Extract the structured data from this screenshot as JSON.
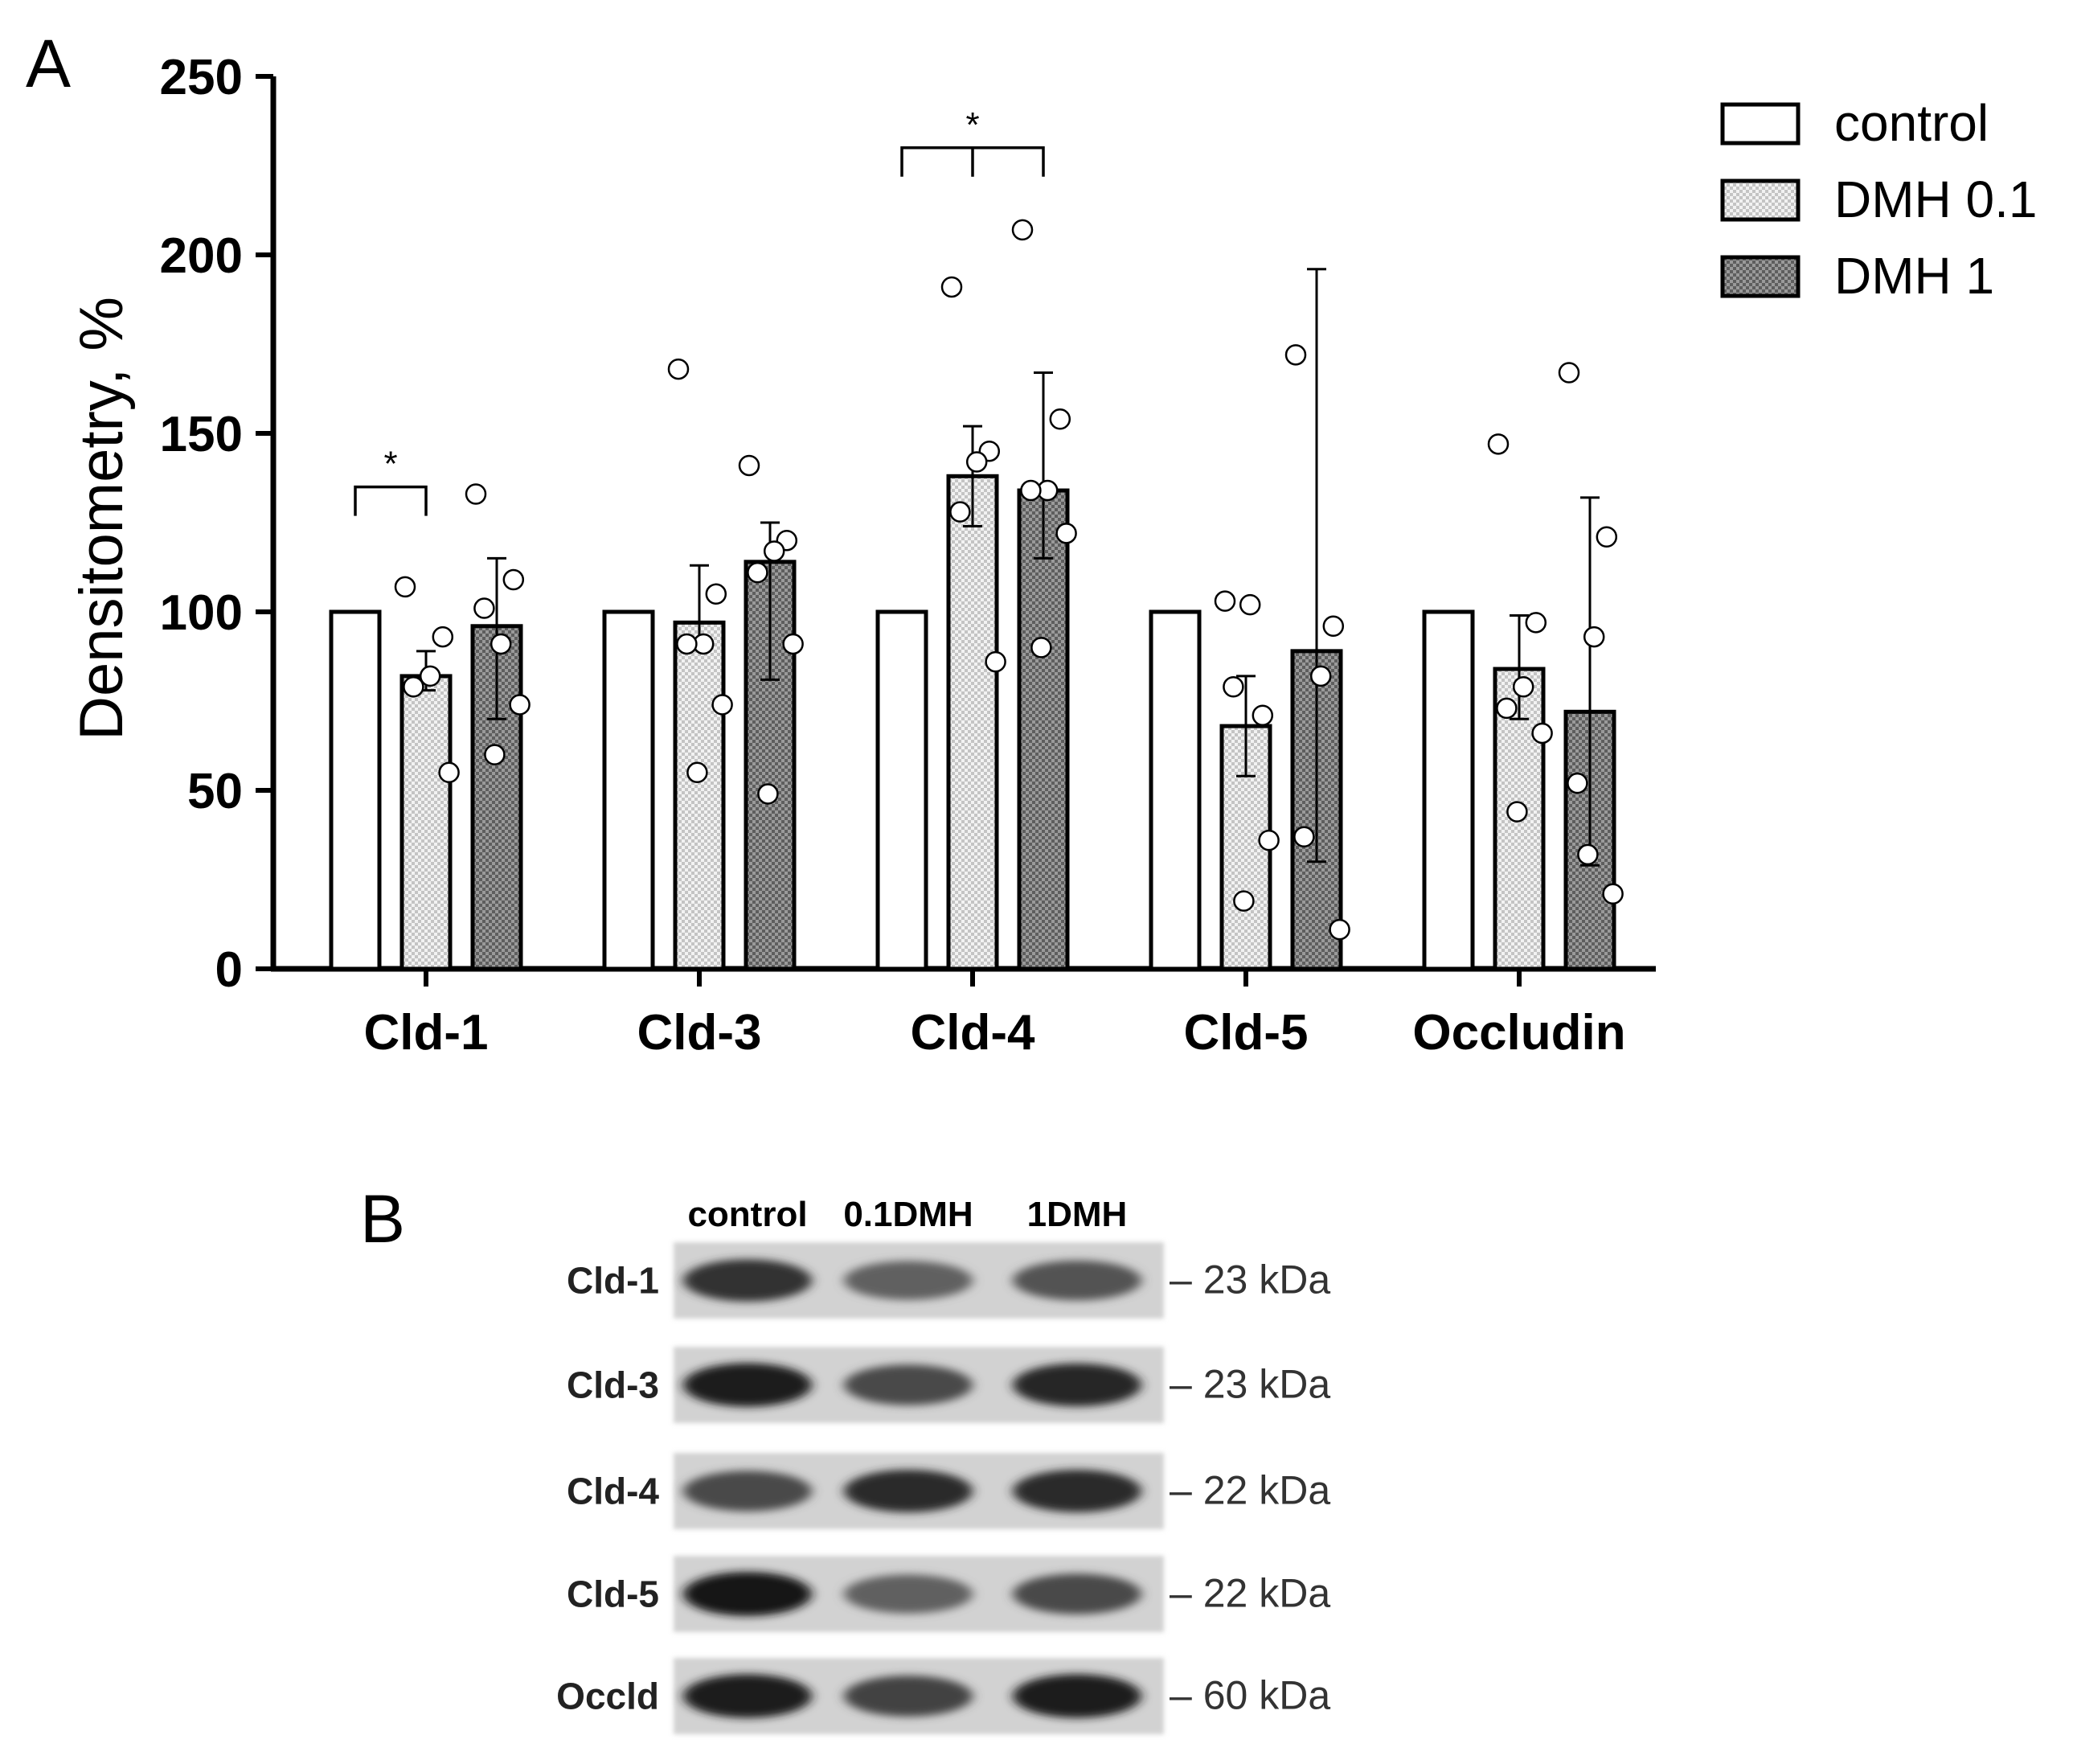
{
  "panel_a": {
    "label": "A"
  },
  "panel_b": {
    "label": "B",
    "lane_labels": [
      "control",
      "0.1DMH",
      "1DMH"
    ],
    "blots": [
      {
        "name": "Cld-1",
        "size": "– 23 kDa",
        "intensity": [
          0.82,
          0.62,
          0.68
        ]
      },
      {
        "name": "Cld-3",
        "size": "– 23 kDa",
        "intensity": [
          0.92,
          0.72,
          0.88
        ]
      },
      {
        "name": "Cld-4",
        "size": "– 22 kDa",
        "intensity": [
          0.72,
          0.85,
          0.85
        ]
      },
      {
        "name": "Cld-5",
        "size": "– 22 kDa",
        "intensity": [
          0.95,
          0.62,
          0.72
        ]
      },
      {
        "name": "Occld",
        "size": "– 60 kDa",
        "intensity": [
          0.92,
          0.75,
          0.92
        ]
      }
    ]
  },
  "colors": {
    "control": "#ffffff",
    "dmh01": "#d9d9d9",
    "dmh1": "#7a7a7a",
    "axis": "#000000"
  },
  "chart_data": {
    "type": "bar",
    "title": "",
    "xlabel": "",
    "ylabel": "Densitometry, %",
    "ylim": [
      0,
      250
    ],
    "yticks": [
      0,
      50,
      100,
      150,
      200,
      250
    ],
    "categories": [
      "Cld-1",
      "Cld-3",
      "Cld-4",
      "Cld-5",
      "Occludin"
    ],
    "legend_position": "top-right",
    "series": [
      {
        "name": "control",
        "values": [
          100,
          100,
          100,
          100,
          100
        ],
        "errors": [
          [
            0,
            0
          ],
          [
            0,
            0
          ],
          [
            0,
            0
          ],
          [
            0,
            0
          ],
          [
            0,
            0
          ]
        ],
        "points": [
          [],
          [],
          [],
          [],
          []
        ]
      },
      {
        "name": "DMH 0.1",
        "values": [
          82,
          97,
          138,
          68,
          84
        ],
        "errors": [
          [
            78,
            89
          ],
          [
            91,
            113
          ],
          [
            124,
            152
          ],
          [
            54,
            82
          ],
          [
            70,
            99
          ]
        ],
        "points": [
          [
            107,
            93,
            82,
            79,
            55
          ],
          [
            168,
            105,
            91,
            91,
            74,
            55
          ],
          [
            191,
            145,
            142,
            128,
            86
          ],
          [
            103,
            71,
            102,
            79,
            36,
            19
          ],
          [
            147,
            97,
            79,
            73,
            66,
            44
          ]
        ]
      },
      {
        "name": "DMH 1",
        "values": [
          96,
          114,
          134,
          89,
          72
        ],
        "errors": [
          [
            70,
            115
          ],
          [
            81,
            125
          ],
          [
            115,
            167
          ],
          [
            30,
            196
          ],
          [
            29,
            132
          ]
        ],
        "points": [
          [
            133,
            109,
            91,
            101,
            74,
            60
          ],
          [
            141,
            120,
            117,
            111,
            91,
            49
          ],
          [
            207,
            154,
            134,
            134,
            122,
            90
          ],
          [
            172,
            96,
            82,
            37,
            11
          ],
          [
            167,
            121,
            93,
            52,
            21,
            32
          ]
        ]
      }
    ],
    "significance": [
      {
        "category": "Cld-1",
        "from": "control",
        "to": "DMH 0.1",
        "label": "*",
        "y": 135
      },
      {
        "category": "Cld-4",
        "from": "control",
        "to": "DMH 1",
        "label": "*",
        "y": 230
      }
    ]
  }
}
